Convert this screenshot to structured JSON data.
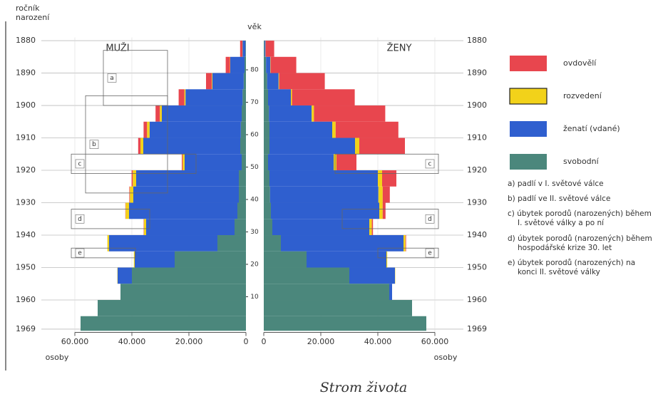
{
  "chart_data": {
    "type": "pyramid",
    "ylabel": [
      "ročník",
      "narození"
    ],
    "y2label": "věk",
    "xlabel": "osoby",
    "side_titles": [
      "MUŽI",
      "ŽENY"
    ],
    "caption": "Strom života",
    "x": [
      1880,
      1885,
      1890,
      1895,
      1900,
      1905,
      1910,
      1915,
      1920,
      1925,
      1930,
      1935,
      1940,
      1945,
      1950,
      1955,
      1960,
      1965
    ],
    "ylim": [
      1879,
      1970
    ],
    "yticks": [
      1880,
      1890,
      1900,
      1910,
      1920,
      1930,
      1940,
      1950,
      1960,
      1969
    ],
    "y2lim": [
      90,
      -1
    ],
    "y2ticks": [
      80,
      70,
      60,
      50,
      40,
      30,
      20,
      10
    ],
    "xlim": [
      0,
      60000
    ],
    "xticks": [
      {
        "value": 60000,
        "label": "60.000"
      },
      {
        "value": 40000,
        "label": "40.000"
      },
      {
        "value": 20000,
        "label": "20.000"
      },
      0
    ],
    "grid": true,
    "series": [
      {
        "name": "svobodní",
        "color": "#4b877c",
        "men": [
          200,
          500,
          800,
          1200,
          1500,
          1800,
          2000,
          1500,
          2500,
          2500,
          3000,
          4000,
          10000,
          25000,
          40000,
          44000,
          52000,
          58000
        ],
        "women": [
          300,
          800,
          1200,
          1500,
          1800,
          2000,
          2000,
          1500,
          2000,
          2200,
          2500,
          3000,
          6000,
          15000,
          30000,
          44000,
          52000,
          57000
        ]
      },
      {
        "name": "ženatí (vdané)",
        "color": "#2f5fcf",
        "men": [
          1000,
          5000,
          11000,
          20000,
          28000,
          32000,
          34000,
          20000,
          36000,
          37000,
          38000,
          31000,
          38000,
          14000,
          5000,
          0,
          0,
          0
        ],
        "women": [
          300,
          1500,
          4000,
          8000,
          15000,
          22000,
          30000,
          23000,
          38000,
          38000,
          38000,
          34000,
          43000,
          28000,
          16000,
          1000,
          0,
          0
        ]
      },
      {
        "name": "rozvedení",
        "color": "#f2d21a",
        "men": [
          50,
          100,
          200,
          400,
          700,
          900,
          1000,
          700,
          1200,
          1200,
          1200,
          800,
          600,
          300,
          100,
          0,
          0,
          0
        ],
        "women": [
          50,
          100,
          200,
          400,
          800,
          1200,
          1500,
          1000,
          1500,
          1500,
          1200,
          900,
          700,
          300,
          100,
          0,
          0,
          0
        ]
      },
      {
        "name": "ovdovělí",
        "color": "#e8464e",
        "men": [
          800,
          1500,
          2000,
          2000,
          1500,
          1200,
          800,
          300,
          400,
          200,
          100,
          100,
          0,
          0,
          0,
          0,
          0,
          0
        ],
        "women": [
          3000,
          9000,
          16000,
          22000,
          25000,
          22000,
          16000,
          7000,
          5000,
          2500,
          1000,
          400,
          200,
          0,
          0,
          0,
          0,
          0
        ]
      }
    ],
    "brackets": [
      {
        "label": "a",
        "from": 1883,
        "to": 1900,
        "sides": [
          "left"
        ]
      },
      {
        "label": "b",
        "from": 1897,
        "to": 1927,
        "sides": [
          "left"
        ]
      },
      {
        "label": "c",
        "from": 1915,
        "to": 1921,
        "sides": [
          "left",
          "right"
        ]
      },
      {
        "label": "d",
        "from": 1932,
        "to": 1938,
        "sides": [
          "left",
          "right"
        ]
      },
      {
        "label": "e",
        "from": 1944,
        "to": 1947,
        "sides": [
          "left",
          "right"
        ]
      }
    ],
    "notes": [
      "a) padlí v I. světové válce",
      "b) padlí ve II. světové válce",
      "c) úbytek porodů (narozených) během I. světové války a po ní",
      "d) úbytek porodů (narozených) během hospodářské krize 30. let",
      "e) úbytek porodů (narozených) na konci II. světové války"
    ]
  }
}
